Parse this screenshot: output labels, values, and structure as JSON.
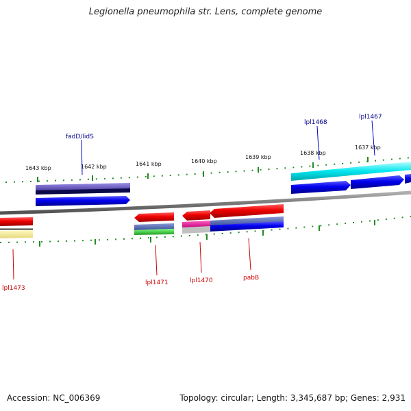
{
  "title": "Legionella pneumophila str. Lens, complete genome",
  "footer": {
    "accession": "Accession: NC_006369",
    "stats": "Topology: circular; Length: 3,345,687 bp; Genes: 2,931"
  },
  "scale_labels": [
    "1643 kbp",
    "1642 kbp",
    "1641 kbp",
    "1640 kbp",
    "1639 kbp",
    "1638 kbp",
    "1637 kbp"
  ],
  "gene_labels": {
    "fadD": "fadD/lidS",
    "lpl1468": "lpl1468",
    "lpl1467": "lpl1467",
    "lpl1473": "lpl1473",
    "lpl1471": "lpl1471",
    "lpl1470": "lpl1470",
    "pabB": "pabB"
  },
  "colors": {
    "backbone": "#808080",
    "tick": "#228b22",
    "forward_cds": "#0000ee",
    "reverse_cds": "#ee0000",
    "trna_like": "#00e5ee",
    "label_forward": "#00008b",
    "label_reverse": "#cc0000"
  }
}
